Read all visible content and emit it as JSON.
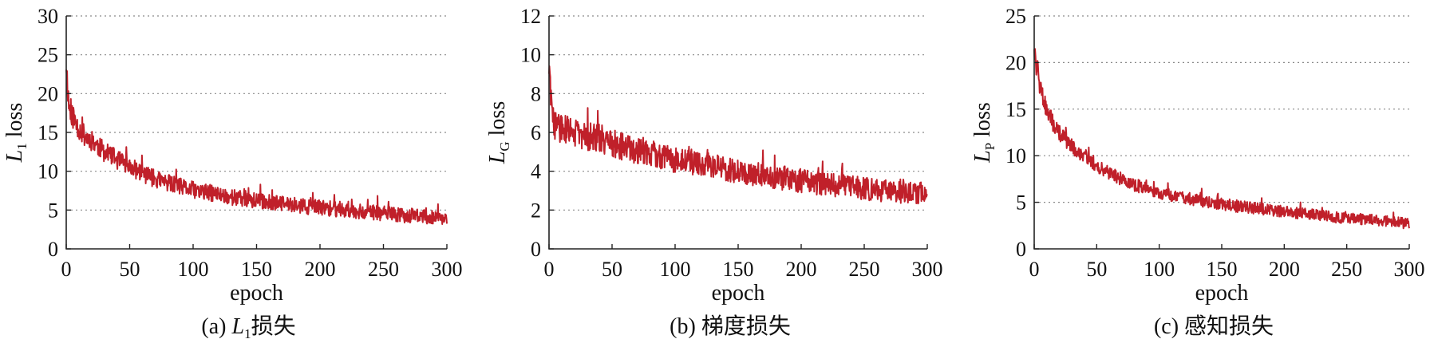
{
  "figure": {
    "colors": {
      "line": "#c0202a",
      "axis": "#222222",
      "grid": "#8a8a8a"
    }
  },
  "chart_data": [
    {
      "type": "line",
      "caption": {
        "prefix": "(a) ",
        "var": "L",
        "sub": "1",
        "text": "损失"
      },
      "xlabel": "epoch",
      "ylabel": {
        "var": "L",
        "sub": "1",
        "text": " loss"
      },
      "xlim": [
        0,
        300
      ],
      "ylim": [
        0,
        30
      ],
      "xticks": [
        "0",
        "50",
        "100",
        "150",
        "200",
        "250",
        "300"
      ],
      "yticks": [
        "0",
        "5",
        "10",
        "15",
        "20",
        "25",
        "30"
      ],
      "grid": "horizontal-dotted",
      "series": [
        {
          "color": "#c0202a",
          "x": [
            0,
            2,
            5,
            10,
            15,
            20,
            30,
            40,
            50,
            60,
            70,
            80,
            90,
            100,
            120,
            140,
            160,
            180,
            200,
            220,
            240,
            260,
            280,
            300
          ],
          "values": [
            24,
            18.5,
            17,
            15.5,
            14.5,
            14,
            12.5,
            11.5,
            10.5,
            9.8,
            9.0,
            8.5,
            8.0,
            7.6,
            7.0,
            6.4,
            6.0,
            5.6,
            5.3,
            5.0,
            4.7,
            4.4,
            4.2,
            3.9
          ],
          "noise_amplitude": 1.4
        }
      ]
    },
    {
      "type": "line",
      "caption": {
        "prefix": "(b) ",
        "var": "",
        "sub": "",
        "text": "梯度损失"
      },
      "xlabel": "epoch",
      "ylabel": {
        "var": "L",
        "sub": "G",
        "text": " loss"
      },
      "xlim": [
        0,
        300
      ],
      "ylim": [
        0,
        12
      ],
      "xticks": [
        "0",
        "50",
        "100",
        "150",
        "200",
        "250",
        "300"
      ],
      "yticks": [
        "0",
        "2",
        "4",
        "6",
        "8",
        "10",
        "12"
      ],
      "grid": "horizontal-dotted",
      "series": [
        {
          "color": "#c0202a",
          "x": [
            0,
            2,
            5,
            10,
            20,
            30,
            40,
            50,
            60,
            80,
            100,
            120,
            140,
            160,
            180,
            200,
            220,
            240,
            260,
            280,
            300
          ],
          "values": [
            9.5,
            7.0,
            6.3,
            6.2,
            6.0,
            5.8,
            5.7,
            5.5,
            5.2,
            4.9,
            4.6,
            4.4,
            4.1,
            3.9,
            3.7,
            3.5,
            3.3,
            3.2,
            3.0,
            2.9,
            2.9
          ],
          "noise_amplitude": 0.75
        }
      ]
    },
    {
      "type": "line",
      "caption": {
        "prefix": "(c) ",
        "var": "",
        "sub": "",
        "text": "感知损失"
      },
      "xlabel": "epoch",
      "ylabel": {
        "var": "L",
        "sub": "P",
        "text": " loss"
      },
      "xlim": [
        0,
        300
      ],
      "ylim": [
        0,
        25
      ],
      "xticks": [
        "0",
        "50",
        "100",
        "150",
        "200",
        "250",
        "300"
      ],
      "yticks": [
        "0",
        "5",
        "10",
        "15",
        "20",
        "25"
      ],
      "grid": "horizontal-dotted",
      "series": [
        {
          "color": "#c0202a",
          "x": [
            0,
            2,
            5,
            10,
            15,
            20,
            30,
            40,
            50,
            60,
            70,
            80,
            100,
            120,
            140,
            160,
            180,
            200,
            220,
            240,
            260,
            280,
            300
          ],
          "values": [
            22,
            19,
            17,
            15,
            13.5,
            12.5,
            11,
            10,
            9.0,
            8.2,
            7.5,
            6.9,
            6.0,
            5.5,
            5.0,
            4.6,
            4.3,
            4.0,
            3.7,
            3.4,
            3.2,
            3.0,
            2.7
          ],
          "noise_amplitude": 0.9
        }
      ]
    }
  ]
}
